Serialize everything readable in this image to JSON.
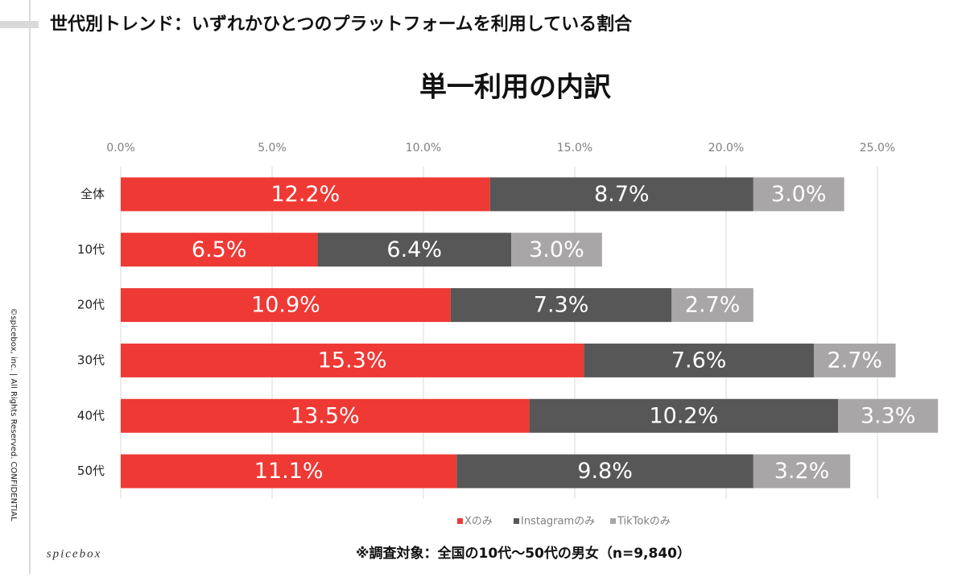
{
  "header": {
    "title": "世代別トレンド：いずれかひとつのプラットフォームを利用している割合"
  },
  "copyright": "©spicebox, inc. | All Rights Reserved. CONFIDENTIAL",
  "logo": "spicebox",
  "footnote": "※調査対象：全国の10代〜50代の男女（n=9,840）",
  "chart_data": {
    "type": "stacked-bar-horizontal",
    "title": "単一利用の内訳",
    "categories": [
      "全体",
      "10代",
      "20代",
      "30代",
      "40代",
      "50代"
    ],
    "series": [
      {
        "name": "Xのみ",
        "color": "#ef3935",
        "values": [
          12.2,
          6.5,
          10.9,
          15.3,
          13.5,
          11.1
        ],
        "value_labels": [
          "12.2%",
          "6.5%",
          "10.9%",
          "15.3%",
          "13.5%",
          "11.1%"
        ]
      },
      {
        "name": "Instagramのみ",
        "color": "#575757",
        "values": [
          8.7,
          6.4,
          7.3,
          7.6,
          10.2,
          9.8
        ],
        "value_labels": [
          "8.7%",
          "6.4%",
          "7.3%",
          "7.6%",
          "10.2%",
          "9.8%"
        ]
      },
      {
        "name": "TikTokのみ",
        "color": "#a8a6a6",
        "values": [
          3.0,
          3.0,
          2.7,
          2.7,
          3.3,
          3.2
        ],
        "value_labels": [
          "3.0%",
          "3.0%",
          "2.7%",
          "2.7%",
          "3.3%",
          "3.2%"
        ]
      }
    ],
    "xlim": [
      0,
      25
    ],
    "xticks": [
      {
        "value": 0,
        "label": "0.0%"
      },
      {
        "value": 5,
        "label": "5.0%"
      },
      {
        "value": 10,
        "label": "10.0%"
      },
      {
        "value": 15,
        "label": "15.0%"
      },
      {
        "value": 20,
        "label": "20.0%"
      },
      {
        "value": 25,
        "label": "25.0%"
      }
    ],
    "grid": true,
    "legend": "bottom"
  }
}
